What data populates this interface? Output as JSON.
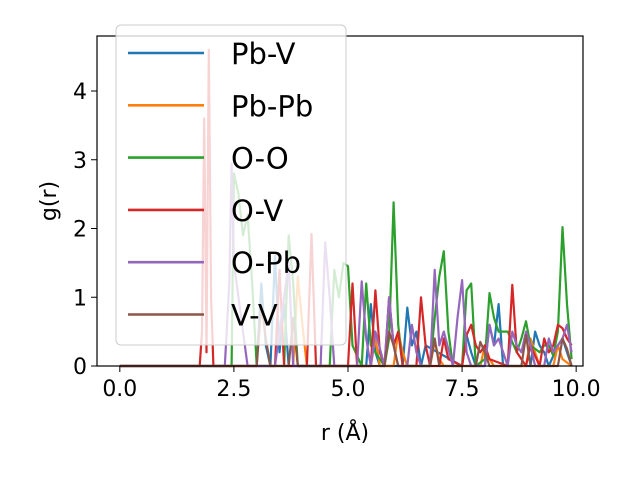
{
  "chart_data": {
    "type": "line",
    "xlabel": "r (Å)",
    "ylabel": "g(r)",
    "xlim": [
      -0.5,
      10.15
    ],
    "ylim": [
      0,
      4.8
    ],
    "xticks": [
      0.0,
      2.5,
      5.0,
      7.5,
      10.0
    ],
    "xtick_labels": [
      "0.0",
      "2.5",
      "5.0",
      "7.5",
      "10.0"
    ],
    "yticks": [
      0,
      1,
      2,
      3,
      4
    ],
    "ytick_labels": [
      "0",
      "1",
      "2",
      "3",
      "4"
    ],
    "grid": false,
    "legend_position": "upper-left",
    "series": [
      {
        "name": "Pb-V",
        "color": "#1f77b4",
        "x": [
          0,
          3.0,
          3.1,
          3.2,
          3.3,
          3.4,
          3.5,
          3.6,
          3.7,
          3.8,
          5.4,
          5.5,
          5.6,
          5.7,
          6.2,
          6.3,
          6.4,
          6.5,
          6.6,
          6.7,
          7.5,
          7.6,
          7.7,
          7.8,
          8.0,
          8.1,
          8.2,
          8.3,
          8.4,
          9.0,
          9.1,
          9.2,
          9.3,
          9.4,
          9.6,
          9.7,
          9.8,
          9.9
        ],
        "y": [
          0,
          0,
          1.2,
          0.3,
          0,
          1.6,
          0.2,
          0.9,
          0,
          0,
          0,
          0.9,
          0.2,
          0,
          0,
          0.85,
          0.3,
          0.5,
          0,
          0.3,
          0,
          0.45,
          0.2,
          0,
          0,
          0.6,
          0.3,
          0.9,
          0,
          0,
          0.5,
          0.3,
          0.2,
          0,
          0.3,
          0.4,
          0.2,
          0
        ]
      },
      {
        "name": "Pb-Pb",
        "color": "#ff7f0e",
        "x": [
          0,
          3.8,
          3.9,
          4.0,
          4.1,
          5.5,
          5.6,
          5.7,
          6.0,
          6.1,
          6.2,
          6.3,
          6.8,
          6.9,
          7.0,
          7.1,
          7.9,
          8.0,
          8.1,
          8.2,
          8.9,
          9.0,
          9.1,
          9.2,
          9.5,
          9.6,
          9.7,
          9.9
        ],
        "y": [
          0,
          0,
          1.3,
          0.6,
          0,
          0,
          0.4,
          0,
          0,
          0.5,
          0.2,
          0,
          0,
          0.35,
          0.1,
          0,
          0,
          0.3,
          0.1,
          0,
          0,
          0.4,
          0.2,
          0,
          0,
          0.3,
          0.1,
          0
        ]
      },
      {
        "name": "O-O",
        "color": "#2ca02c",
        "x": [
          0,
          2.45,
          2.5,
          2.6,
          2.7,
          2.8,
          2.9,
          3.0,
          3.6,
          3.7,
          3.8,
          3.9,
          4.6,
          4.7,
          4.8,
          4.9,
          5.0,
          5.1,
          5.3,
          5.4,
          5.5,
          5.8,
          5.9,
          6.0,
          6.1,
          6.2,
          6.8,
          6.9,
          7.0,
          7.1,
          7.2,
          7.3,
          7.5,
          7.6,
          7.7,
          7.8,
          8.0,
          8.1,
          8.2,
          8.3,
          8.5,
          8.7,
          8.8,
          8.9,
          9.0,
          9.2,
          9.3,
          9.4,
          9.5,
          9.6,
          9.7,
          9.8,
          9.9
        ],
        "y": [
          0,
          0,
          2.8,
          2.5,
          1.9,
          2.2,
          1.2,
          0,
          0,
          1.9,
          1.2,
          0,
          0,
          1.4,
          1.0,
          1.5,
          1.45,
          0.3,
          0,
          1.2,
          0.3,
          0,
          0.4,
          2.38,
          0.6,
          0,
          0,
          0.7,
          1.3,
          1.67,
          0.5,
          0,
          0,
          1.1,
          1.2,
          0,
          0.1,
          1.06,
          0.7,
          0.5,
          0.5,
          0.2,
          0.4,
          0.65,
          0.3,
          0.2,
          0.3,
          0.3,
          0.15,
          0.5,
          2.02,
          0.9,
          0.1
        ]
      },
      {
        "name": "O-V",
        "color": "#d62728",
        "x": [
          0,
          1.75,
          1.8,
          1.85,
          1.9,
          1.95,
          2.0,
          2.05,
          3.4,
          3.5,
          3.6,
          4.1,
          4.2,
          4.3,
          5.0,
          5.1,
          5.2,
          5.5,
          5.6,
          5.7,
          5.8,
          5.9,
          6.0,
          6.1,
          6.2,
          6.3,
          6.5,
          6.6,
          6.7,
          6.8,
          7.0,
          7.1,
          7.2,
          7.5,
          7.6,
          7.7,
          7.8,
          7.9,
          8.0,
          8.1,
          8.5,
          8.6,
          8.7,
          8.9,
          9.0,
          9.2,
          9.3,
          9.4,
          9.5,
          9.6,
          9.7,
          9.8,
          9.9
        ],
        "y": [
          0,
          0,
          0.5,
          3.6,
          0.2,
          4.6,
          1.0,
          0,
          0,
          1.4,
          0,
          0,
          1.92,
          0,
          0,
          1.2,
          0,
          0,
          1.1,
          0.2,
          0,
          1.0,
          0.3,
          0.5,
          0,
          0,
          0,
          1.0,
          0.3,
          0,
          0,
          0.4,
          0.1,
          0,
          0.45,
          0.6,
          0.3,
          0.2,
          0.3,
          0.1,
          0,
          1.18,
          0.2,
          0,
          0.3,
          0,
          0.4,
          0.2,
          0.3,
          0.6,
          0.55,
          0.4,
          0.3
        ]
      },
      {
        "name": "O-Pb",
        "color": "#9467bd",
        "x": [
          0,
          2.3,
          2.4,
          2.45,
          2.5,
          2.6,
          2.7,
          2.8,
          3.4,
          3.5,
          3.6,
          3.7,
          3.8,
          4.4,
          4.5,
          4.6,
          4.7,
          5.2,
          5.3,
          5.4,
          5.5,
          5.6,
          5.8,
          5.9,
          6.0,
          6.1,
          6.3,
          6.4,
          6.5,
          6.6,
          6.8,
          6.9,
          7.0,
          7.1,
          7.3,
          7.4,
          7.5,
          7.6,
          7.7,
          8.0,
          8.1,
          8.2,
          8.3,
          8.5,
          8.6,
          8.7,
          8.8,
          8.9,
          9.0,
          9.1,
          9.3,
          9.4,
          9.5,
          9.6,
          9.7,
          9.8,
          9.9
        ],
        "y": [
          0,
          0,
          1.2,
          2.95,
          1.5,
          1.0,
          0.5,
          0,
          0,
          0.5,
          1.0,
          1.5,
          0,
          0,
          1.8,
          1.0,
          0,
          0,
          1.23,
          0.4,
          0,
          0.5,
          0,
          1.0,
          0.3,
          0,
          0,
          0.6,
          0.2,
          0,
          0,
          1.4,
          0.3,
          0.5,
          0,
          0.7,
          1.25,
          0.2,
          0,
          0,
          0.6,
          0.3,
          0.4,
          0,
          0.5,
          0.3,
          0.2,
          0.5,
          0.3,
          0,
          0,
          0.4,
          0.2,
          0.3,
          0.4,
          0.6,
          0.2
        ]
      },
      {
        "name": "V-V",
        "color": "#8c564b",
        "x": [
          0,
          3.0,
          3.1,
          3.2,
          3.3,
          3.7,
          3.8,
          3.9,
          5.8,
          5.9,
          6.0,
          6.1,
          6.8,
          6.9,
          7.0,
          7.8,
          7.9,
          8.0,
          8.1,
          8.8,
          8.9,
          9.0,
          9.6,
          9.7,
          9.8,
          9.9
        ],
        "y": [
          0,
          0,
          0.9,
          0.4,
          0,
          0,
          0.7,
          0,
          0,
          0.5,
          0.3,
          0,
          0,
          0.4,
          0,
          0,
          0.35,
          0.2,
          0,
          0,
          0.45,
          0,
          0,
          0.4,
          0.25,
          0
        ]
      }
    ]
  }
}
